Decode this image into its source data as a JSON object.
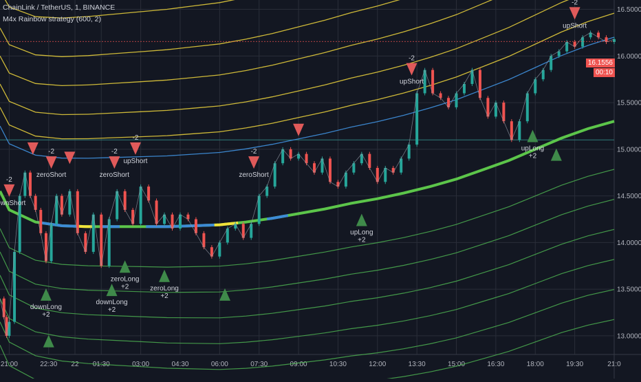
{
  "header": {
    "symbol_line": "ChainLink / TetherUS, 1, BINANCE",
    "indicator_line": "M4x Rainbow strategy (600, 2)"
  },
  "price_tag": {
    "price": "16.1556",
    "countdown": "00:10"
  },
  "colors": {
    "background": "#131722",
    "grid": "#2a2e39",
    "axis_text": "#b2b5be",
    "band_yellow": "#d8c23a",
    "band_green": "#4caf50",
    "mid_blue": "#3d8bd6",
    "mid_green": "#5cc54a",
    "mid_yellow": "#f0e23a",
    "candle_up": "#26a69a",
    "candle_down": "#ef5350",
    "signal_long": "#3f8a4a",
    "signal_short": "#e05a5a",
    "tag_red": "#ef5350"
  },
  "chart_data": {
    "type": "line",
    "title": "ChainLink / TetherUS, 1, BINANCE",
    "indicator": "M4x Rainbow strategy (600, 2)",
    "ylim": [
      12.8,
      16.6
    ],
    "y_ticks": [
      "16.5000",
      "16.0000",
      "15.5000",
      "15.0000",
      "14.5000",
      "14.0000",
      "13.5000",
      "13.0000"
    ],
    "y_tick_values": [
      16.5,
      16.0,
      15.5,
      15.0,
      14.5,
      14.0,
      13.5,
      13.0
    ],
    "x_ticks": [
      "21:00",
      "22:30",
      "22",
      "01:30",
      "03:00",
      "04:30",
      "06:00",
      "07:30",
      "09:00",
      "10:30",
      "12:00",
      "13:30",
      "15:00",
      "16:30",
      "18:00",
      "19:30",
      "21:0"
    ],
    "x_tick_index": [
      0,
      1.5,
      2.5,
      3.5,
      5,
      6.5,
      8,
      9.5,
      11,
      12.5,
      14,
      15.5,
      17,
      18.5,
      20,
      21.5,
      23
    ],
    "x_range": [
      -0.35,
      23.0
    ],
    "midline": {
      "x": [
        -0.35,
        0,
        1,
        2,
        3,
        4,
        5,
        6,
        7,
        8,
        9,
        10,
        11,
        12,
        13,
        14,
        15,
        16,
        17,
        18,
        19,
        20,
        21,
        22,
        23
      ],
      "values": [
        14.55,
        14.35,
        14.22,
        14.18,
        14.17,
        14.17,
        14.17,
        14.17,
        14.18,
        14.19,
        14.22,
        14.26,
        14.31,
        14.36,
        14.42,
        14.47,
        14.53,
        14.6,
        14.68,
        14.78,
        14.88,
        15.0,
        15.12,
        15.22,
        15.3
      ]
    },
    "band_offsets": [
      2.15,
      1.75,
      1.45,
      1.15,
      0.9,
      0.7,
      -0.4,
      -0.65,
      -0.9,
      -1.15,
      -1.4,
      -1.65
    ],
    "price": {
      "x": [
        -0.35,
        -0.2,
        -0.1,
        0,
        0.2,
        0.4,
        0.6,
        0.8,
        1,
        1.2,
        1.4,
        1.6,
        1.8,
        2,
        2.3,
        2.6,
        2.9,
        3.2,
        3.5,
        3.8,
        4.1,
        4.4,
        4.7,
        5,
        5.3,
        5.6,
        5.9,
        6.2,
        6.5,
        6.8,
        7.1,
        7.4,
        7.7,
        8,
        8.3,
        8.6,
        8.9,
        9.2,
        9.5,
        9.8,
        10.1,
        10.4,
        10.7,
        11,
        11.3,
        11.6,
        11.9,
        12.2,
        12.5,
        12.8,
        13.1,
        13.4,
        13.7,
        14,
        14.3,
        14.6,
        14.9,
        15.2,
        15.5,
        15.8,
        16.1,
        16.4,
        16.7,
        17,
        17.3,
        17.6,
        17.9,
        18.2,
        18.5,
        18.8,
        19.1,
        19.4,
        19.7,
        20,
        20.3,
        20.6,
        20.9,
        21.2,
        21.5,
        21.8,
        22.1,
        22.4,
        22.7,
        23
      ],
      "values": [
        13.4,
        13.2,
        13.0,
        13.15,
        13.9,
        14.5,
        14.75,
        14.5,
        14.35,
        14.1,
        13.8,
        14.2,
        14.5,
        14.3,
        14.55,
        14.1,
        13.9,
        14.3,
        13.75,
        14.25,
        14.55,
        14.35,
        14.2,
        14.6,
        14.45,
        14.2,
        14.3,
        14.15,
        14.3,
        14.25,
        14.1,
        13.95,
        13.85,
        14.0,
        14.15,
        14.2,
        14.05,
        14.2,
        14.5,
        14.6,
        14.85,
        15.0,
        14.9,
        14.95,
        14.85,
        14.75,
        14.9,
        14.65,
        14.6,
        14.75,
        14.85,
        14.95,
        14.8,
        14.65,
        14.8,
        14.75,
        14.9,
        15.05,
        15.6,
        15.85,
        15.6,
        15.55,
        15.45,
        15.6,
        15.7,
        15.85,
        15.55,
        15.35,
        15.5,
        15.3,
        15.1,
        15.3,
        15.6,
        15.75,
        15.85,
        16.0,
        16.05,
        16.15,
        16.1,
        16.2,
        16.25,
        16.2,
        16.15,
        16.18
      ]
    },
    "signals": [
      {
        "type": "short",
        "x": 0.0,
        "y": 14.55,
        "label": "downShort",
        "value": "-2"
      },
      {
        "type": "short",
        "x": 0.9,
        "y": 15.0,
        "label": "",
        "value": ""
      },
      {
        "type": "short",
        "x": 1.6,
        "y": 14.85,
        "label": "zeroShort",
        "value": "-2"
      },
      {
        "type": "short",
        "x": 2.3,
        "y": 14.9,
        "label": "",
        "value": ""
      },
      {
        "type": "short",
        "x": 4.0,
        "y": 14.85,
        "label": "zeroShort",
        "value": "-2"
      },
      {
        "type": "short",
        "x": 4.8,
        "y": 15.0,
        "label": "upShort",
        "value": "-2"
      },
      {
        "type": "short",
        "x": 9.3,
        "y": 14.85,
        "label": "zeroShort",
        "value": "-2"
      },
      {
        "type": "short",
        "x": 11.0,
        "y": 15.2,
        "label": "",
        "value": ""
      },
      {
        "type": "short",
        "x": 15.3,
        "y": 15.85,
        "label": "upShort",
        "value": "-2"
      },
      {
        "type": "short",
        "x": 21.5,
        "y": 16.45,
        "label": "upShort",
        "value": "-2"
      },
      {
        "type": "long",
        "x": 1.4,
        "y": 13.45,
        "label": "downLong",
        "value": "+2"
      },
      {
        "type": "long",
        "x": 1.5,
        "y": 12.95,
        "label": "",
        "value": ""
      },
      {
        "type": "long",
        "x": 3.9,
        "y": 13.5,
        "label": "downLong",
        "value": "+2"
      },
      {
        "type": "long",
        "x": 4.4,
        "y": 13.75,
        "label": "zeroLong",
        "value": "+2"
      },
      {
        "type": "long",
        "x": 5.9,
        "y": 13.65,
        "label": "zeroLong",
        "value": "+2"
      },
      {
        "type": "long",
        "x": 8.2,
        "y": 13.45,
        "label": "",
        "value": ""
      },
      {
        "type": "long",
        "x": 13.4,
        "y": 14.25,
        "label": "upLong",
        "value": "+2"
      },
      {
        "type": "long",
        "x": 19.9,
        "y": 15.15,
        "label": "upLong",
        "value": "+2"
      },
      {
        "type": "long",
        "x": 20.8,
        "y": 14.95,
        "label": "",
        "value": ""
      }
    ],
    "hline": 15.1
  }
}
